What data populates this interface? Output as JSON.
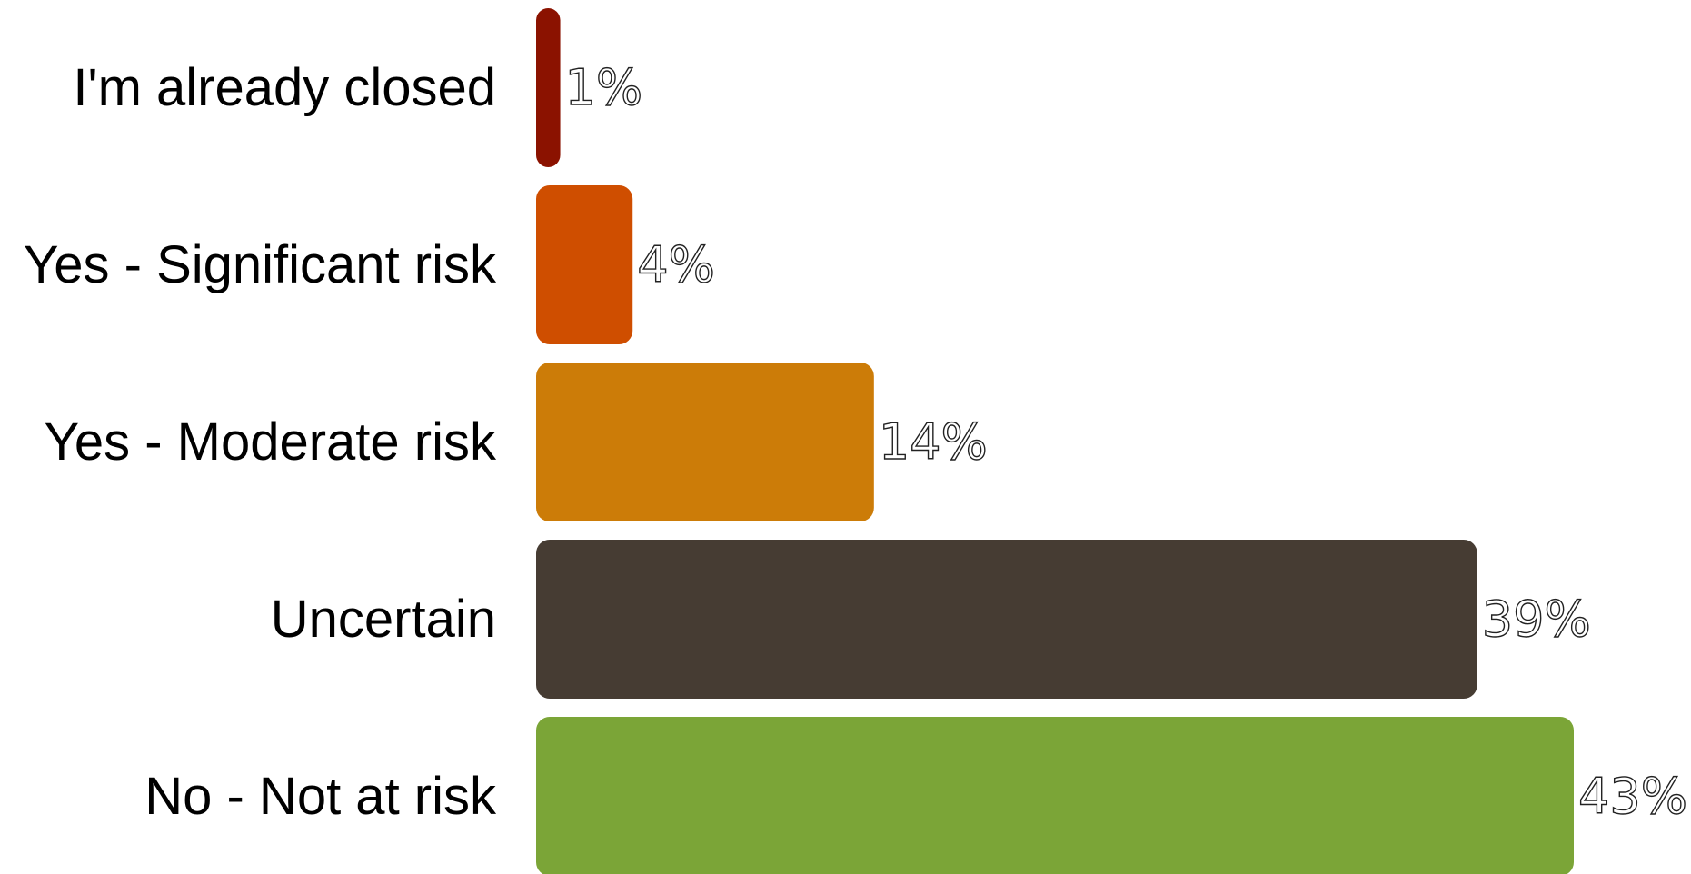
{
  "chart_data": {
    "type": "bar",
    "orientation": "horizontal",
    "categories": [
      "I'm already closed",
      "Yes - Significant risk",
      "Yes - Moderate risk",
      "Uncertain",
      "No - Not at risk"
    ],
    "values": [
      1,
      4,
      14,
      39,
      43
    ],
    "value_labels": [
      "1%",
      "4%",
      "14%",
      "39%",
      "43%"
    ],
    "colors": [
      "#8b1200",
      "#cf4e00",
      "#cc7c08",
      "#463c33",
      "#7ba537"
    ],
    "xlim": [
      0,
      43
    ],
    "grid": false,
    "legend": "none"
  }
}
